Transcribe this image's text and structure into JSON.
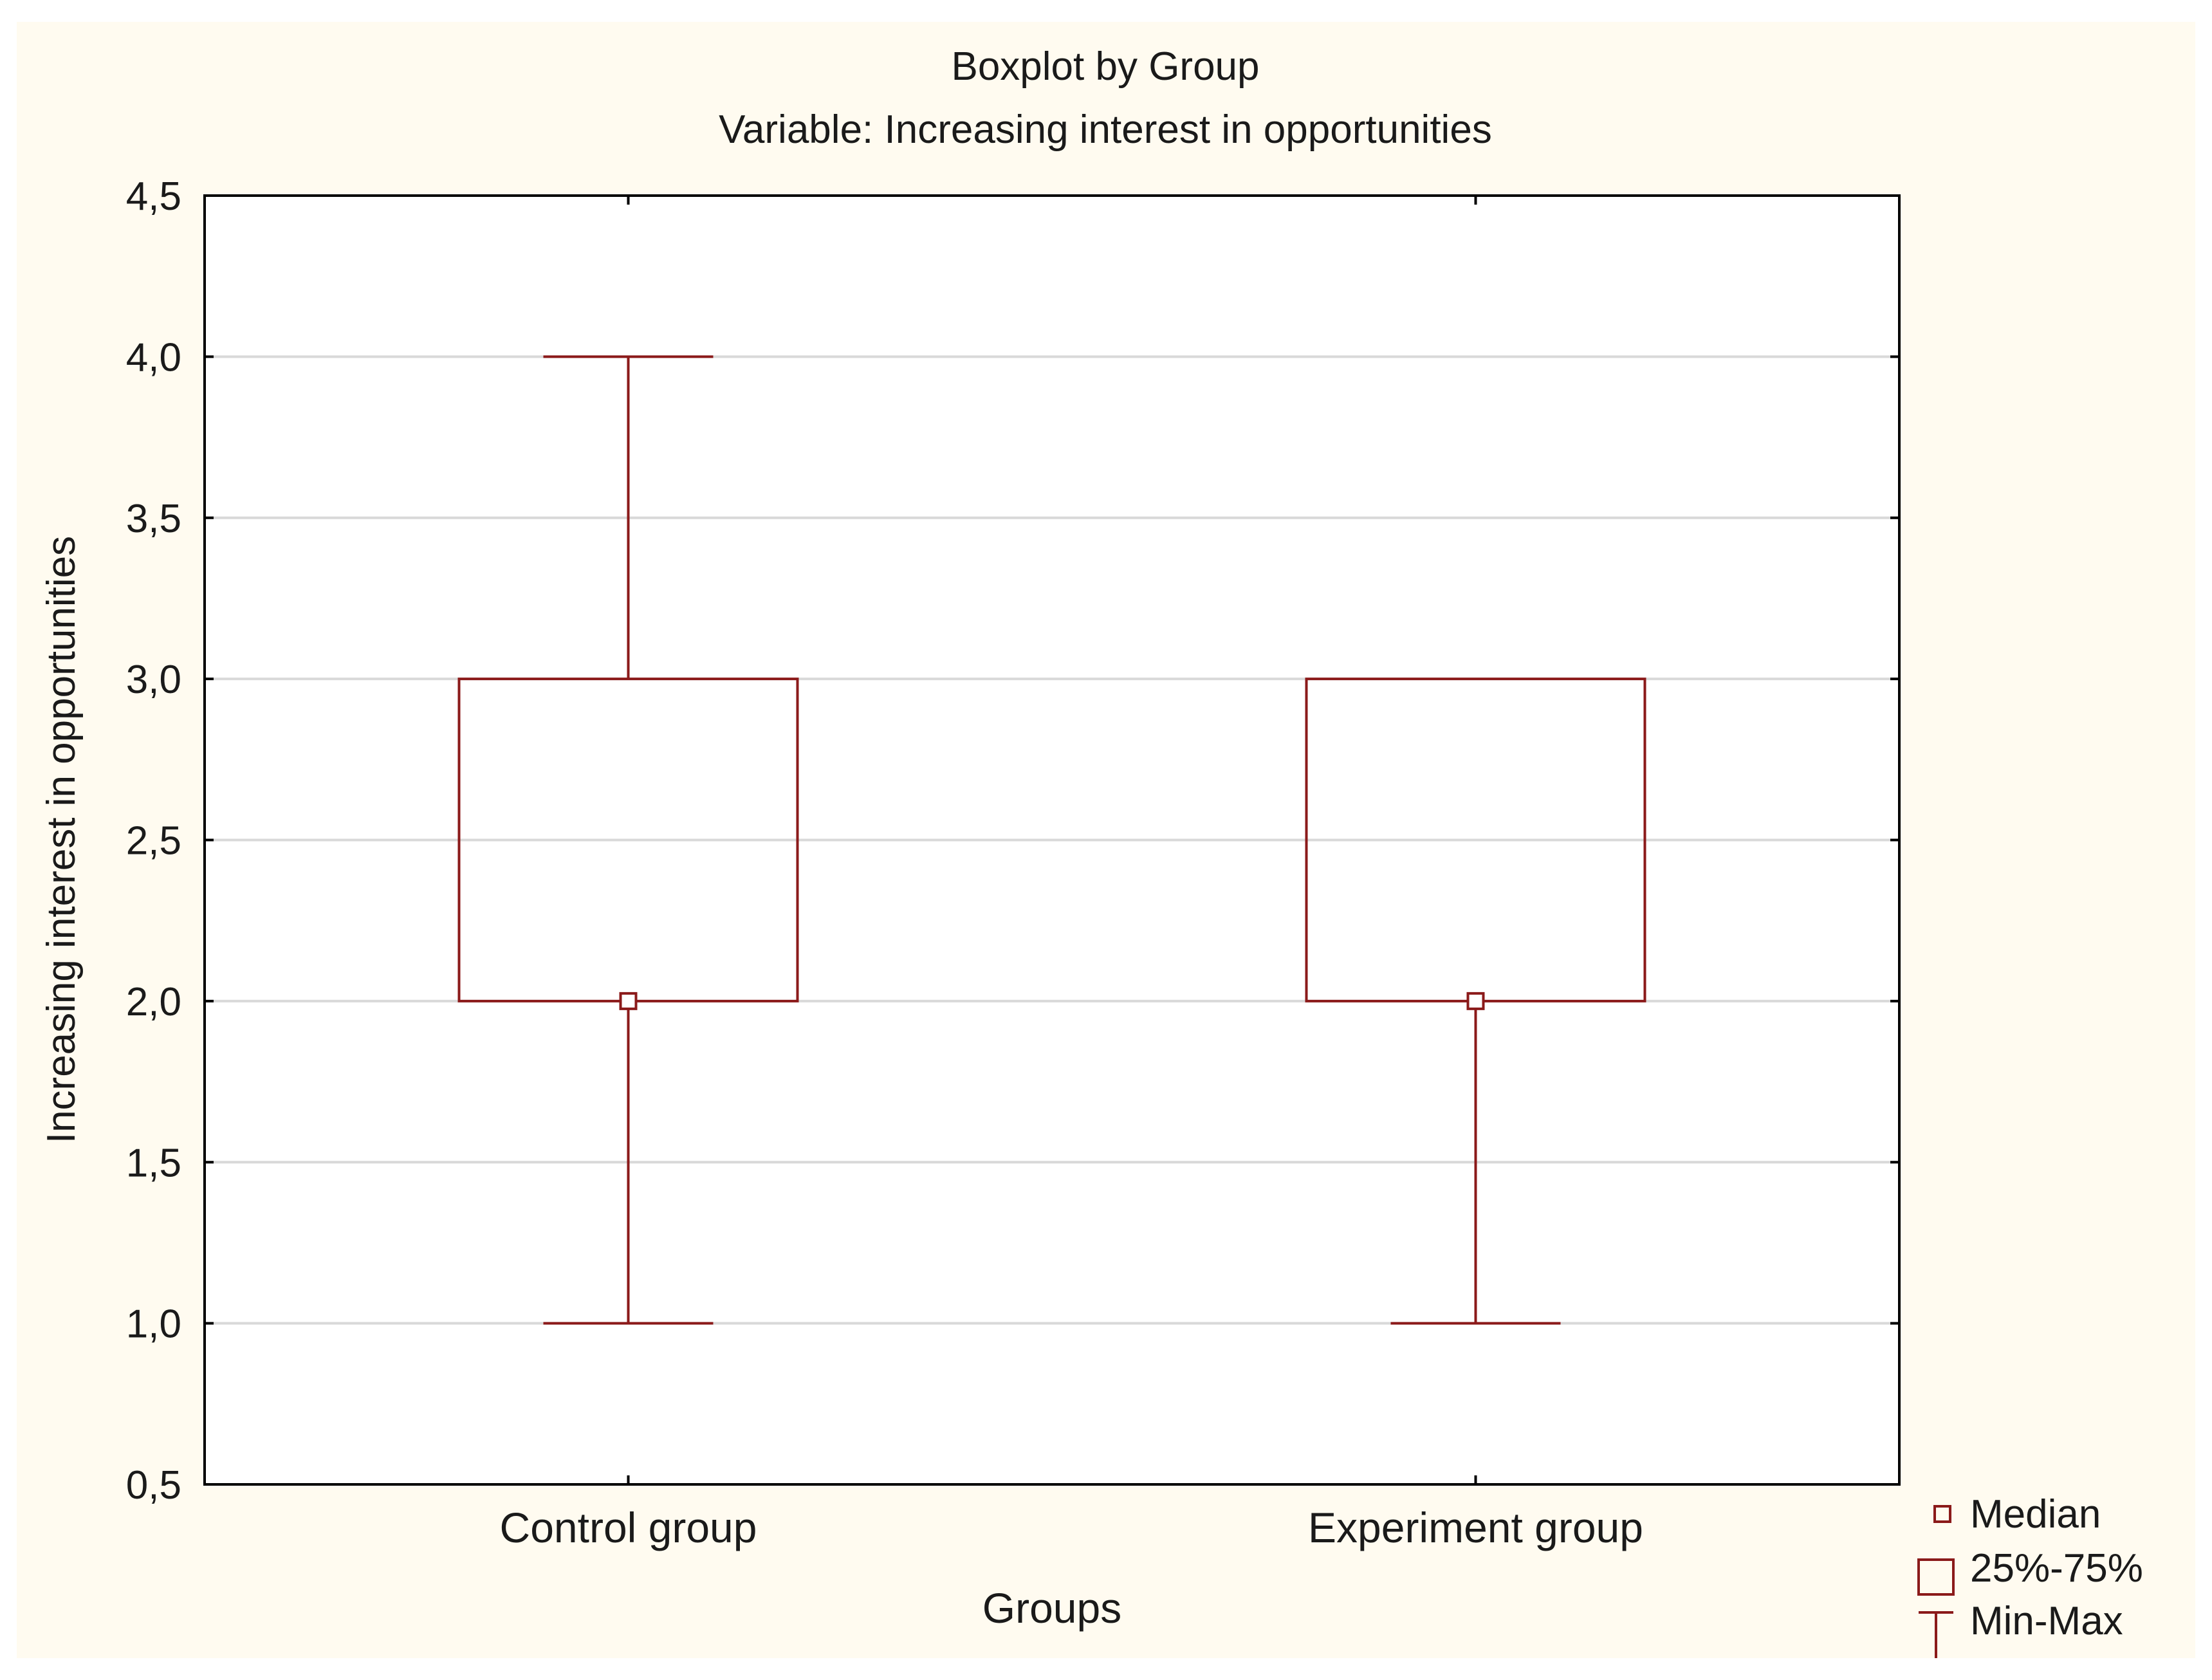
{
  "chart_data": {
    "type": "boxplot",
    "title": "Boxplot by Group",
    "subtitle": "Variable: Increasing interest in opportunities",
    "xlabel": "Groups",
    "ylabel": "Increasing interest in opportunities",
    "ylim": [
      0.5,
      4.5
    ],
    "yticks": [
      0.5,
      1.0,
      1.5,
      2.0,
      2.5,
      3.0,
      3.5,
      4.0,
      4.5
    ],
    "ytick_labels": [
      "0,5",
      "1,0",
      "1,5",
      "2,0",
      "2,5",
      "3,0",
      "3,5",
      "4,0",
      "4,5"
    ],
    "grid": true,
    "categories": [
      "Control group",
      "Experiment group"
    ],
    "series": [
      {
        "name": "Control group",
        "min": 1.0,
        "q1": 2.0,
        "median": 2.0,
        "q3": 3.0,
        "max": 4.0
      },
      {
        "name": "Experiment group",
        "min": 1.0,
        "q1": 2.0,
        "median": 2.0,
        "q3": 3.0,
        "max": 3.0
      }
    ],
    "legend": {
      "placement": "bottom-right",
      "items": [
        {
          "symbol": "median-marker",
          "label": "Median"
        },
        {
          "symbol": "box",
          "label": "25%-75%"
        },
        {
          "symbol": "whisker",
          "label": "Min-Max"
        }
      ]
    },
    "colors": {
      "box": "#8b1a1a",
      "grid": "#d9d9d9",
      "axis": "#000000",
      "plot_background": "#ffffff",
      "figure_background": "#fffbf0"
    }
  }
}
